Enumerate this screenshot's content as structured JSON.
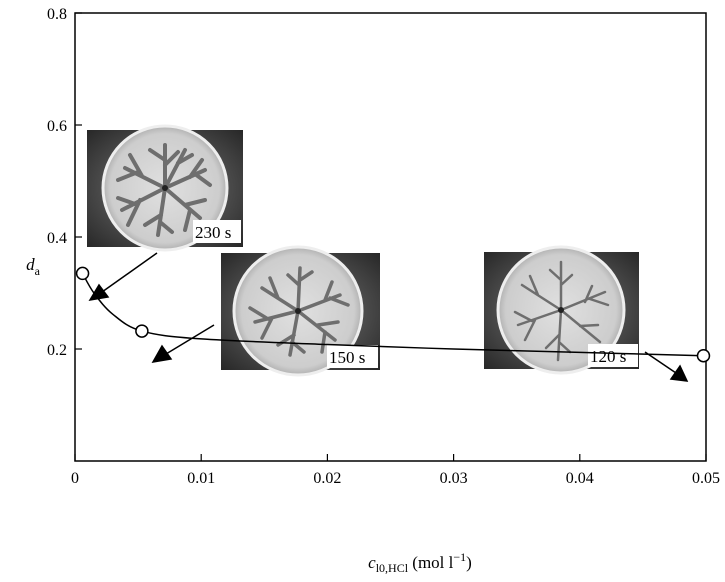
{
  "chart_data": {
    "type": "line",
    "xlabel": {
      "base": "c",
      "sub": "l0,HCl",
      "unit_pre": " (mol l",
      "unit_sup": "−1",
      "unit_post": ")"
    },
    "ylabel": {
      "base": "d",
      "sub": "a"
    },
    "xlim": [
      0,
      0.05
    ],
    "ylim": [
      0,
      0.8
    ],
    "x_ticks": [
      0,
      0.01,
      0.02,
      0.03,
      0.04,
      0.05
    ],
    "x_tick_labels": [
      "0",
      "0.01",
      "0.02",
      "0.03",
      "0.04",
      "0.05"
    ],
    "y_ticks": [
      0.2,
      0.4,
      0.6,
      0.8
    ],
    "y_tick_labels": [
      "0.2",
      "0.4",
      "0.6",
      "0.8"
    ],
    "points": [
      {
        "x": 0.0006,
        "y": 0.335
      },
      {
        "x": 0.0053,
        "y": 0.232
      },
      {
        "x": 0.0498,
        "y": 0.188
      }
    ],
    "curve": [
      {
        "x": 0.0006,
        "y": 0.335
      },
      {
        "x": 0.0015,
        "y": 0.3
      },
      {
        "x": 0.003,
        "y": 0.262
      },
      {
        "x": 0.0053,
        "y": 0.232
      },
      {
        "x": 0.01,
        "y": 0.218
      },
      {
        "x": 0.02,
        "y": 0.208
      },
      {
        "x": 0.03,
        "y": 0.2
      },
      {
        "x": 0.04,
        "y": 0.194
      },
      {
        "x": 0.0498,
        "y": 0.188
      }
    ],
    "annotations": [
      {
        "label": "230 s",
        "point_index": 0
      },
      {
        "label": "150 s",
        "point_index": 1
      },
      {
        "label": "120 s",
        "point_index": 2
      }
    ],
    "grid": false,
    "colors": {
      "line": "#000000",
      "photo_bg": "#3a3a3a",
      "dish": "#cfcfcf",
      "pattern": "#6e6e6e"
    }
  }
}
